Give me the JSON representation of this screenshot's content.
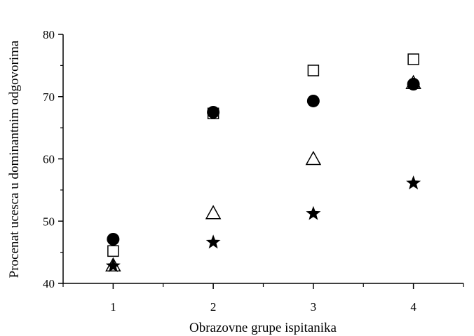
{
  "chart_data": {
    "type": "scatter",
    "title": "",
    "xlabel": "Obrazovne grupe ispitanika",
    "ylabel": "Procenat ucesca u dominantnim odgovorima",
    "xlim": [
      0.5,
      4.5
    ],
    "ylim": [
      40,
      80
    ],
    "x_ticks": [
      1,
      2,
      3,
      4
    ],
    "y_ticks": [
      40,
      50,
      60,
      70,
      80
    ],
    "grid": false,
    "legend": "none",
    "series": [
      {
        "marker": "filled-circle",
        "color": "#000000",
        "x": [
          1,
          2,
          3,
          4
        ],
        "y": [
          47.1,
          67.5,
          69.3,
          72.0
        ]
      },
      {
        "marker": "open-square",
        "color": "#000000",
        "x": [
          1,
          2,
          3,
          4
        ],
        "y": [
          45.2,
          67.3,
          74.2,
          76.0
        ]
      },
      {
        "marker": "open-triangle",
        "color": "#000000",
        "x": [
          1,
          2,
          3,
          4
        ],
        "y": [
          42.9,
          51.3,
          60.0,
          72.2
        ]
      },
      {
        "marker": "filled-star",
        "color": "#000000",
        "x": [
          1,
          2,
          3,
          4
        ],
        "y": [
          42.8,
          46.6,
          51.2,
          56.1
        ]
      }
    ]
  }
}
